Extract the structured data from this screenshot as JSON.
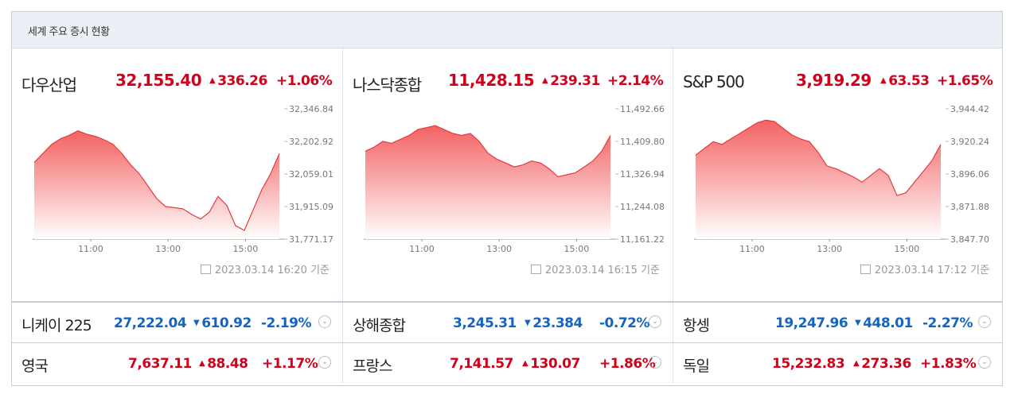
{
  "header": {
    "title": "세계 주요 증시 현황"
  },
  "colors": {
    "up": "#d0021b",
    "down": "#1565c0",
    "area_top": "#f25a5a",
    "area_bottom": "#ffffff",
    "line": "#e8383d"
  },
  "panels": [
    {
      "name": "다우산업",
      "price": "32,155.40",
      "change": "336.26",
      "change_icon": "up-triangle-icon",
      "percent": "+1.06%",
      "timestamp": "2023.03.14 16:20 기준"
    },
    {
      "name": "나스닥종합",
      "price": "11,428.15",
      "change": "239.31",
      "change_icon": "up-triangle-icon",
      "percent": "+2.14%",
      "timestamp": "2023.03.14 16:15 기준"
    },
    {
      "name": "S&P 500",
      "price": "3,919.29",
      "change": "63.53",
      "change_icon": "up-triangle-icon",
      "percent": "+1.65%",
      "timestamp": "2023.03.14 17:12 기준"
    }
  ],
  "rows": [
    [
      {
        "name": "니케이 225",
        "price": "27,222.04",
        "change": "610.92",
        "percent": "-2.19%",
        "direction": "down"
      },
      {
        "name": "상해종합",
        "price": "3,245.31",
        "change": "23.384",
        "percent": "-0.72%",
        "direction": "down"
      },
      {
        "name": "항셍",
        "price": "19,247.96",
        "change": "448.01",
        "percent": "-2.27%",
        "direction": "down"
      }
    ],
    [
      {
        "name": "영국",
        "price": "7,637.11",
        "change": "88.48",
        "percent": "+1.17%",
        "direction": "up"
      },
      {
        "name": "프랑스",
        "price": "7,141.57",
        "change": "130.07",
        "percent": "+1.86%",
        "direction": "up"
      },
      {
        "name": "독일",
        "price": "15,232.83",
        "change": "273.36",
        "percent": "+1.83%",
        "direction": "up"
      }
    ]
  ],
  "chart_data": [
    {
      "type": "area",
      "title": "다우산업",
      "x_ticks": [
        "11:00",
        "13:00",
        "15:00"
      ],
      "y_ticks": [
        "32,346.84",
        "32,202.92",
        "32,059.01",
        "31,915.09",
        "31,771.17"
      ],
      "ylim": [
        31771.17,
        32346.84
      ],
      "x_range": [
        "09:30",
        "16:00"
      ],
      "grid": false,
      "series": [
        {
          "values": [
            32110,
            32150,
            32190,
            32215,
            32230,
            32250,
            32235,
            32225,
            32210,
            32190,
            32150,
            32100,
            32060,
            32005,
            31950,
            31915,
            31910,
            31905,
            31880,
            31860,
            31890,
            31960,
            31920,
            31830,
            31810,
            31900,
            31990,
            32060,
            32150
          ]
        }
      ]
    },
    {
      "type": "area",
      "title": "나스닥종합",
      "x_ticks": [
        "11:00",
        "13:00",
        "15:00"
      ],
      "y_ticks": [
        "11,492.66",
        "11,409.80",
        "11,326.94",
        "11,244.08",
        "11,161.22"
      ],
      "ylim": [
        11161.22,
        11492.66
      ],
      "x_range": [
        "09:30",
        "16:00"
      ],
      "grid": false,
      "series": [
        {
          "values": [
            11385,
            11395,
            11410,
            11405,
            11415,
            11425,
            11440,
            11445,
            11450,
            11440,
            11430,
            11425,
            11430,
            11410,
            11380,
            11365,
            11355,
            11345,
            11350,
            11360,
            11355,
            11340,
            11320,
            11325,
            11330,
            11345,
            11360,
            11385,
            11425
          ]
        }
      ]
    },
    {
      "type": "area",
      "title": "S&P 500",
      "x_ticks": [
        "11:00",
        "13:00",
        "15:00"
      ],
      "y_ticks": [
        "3,944.42",
        "3,920.24",
        "3,896.06",
        "3,871.88",
        "3,847.70"
      ],
      "ylim": [
        3847.7,
        3944.42
      ],
      "x_range": [
        "09:30",
        "16:00"
      ],
      "grid": false,
      "series": [
        {
          "values": [
            3910,
            3915,
            3920,
            3918,
            3922,
            3926,
            3930,
            3934,
            3936,
            3935,
            3930,
            3925,
            3922,
            3920,
            3912,
            3902,
            3900,
            3897,
            3894,
            3890,
            3895,
            3900,
            3895,
            3880,
            3882,
            3890,
            3898,
            3906,
            3918
          ]
        }
      ]
    }
  ]
}
